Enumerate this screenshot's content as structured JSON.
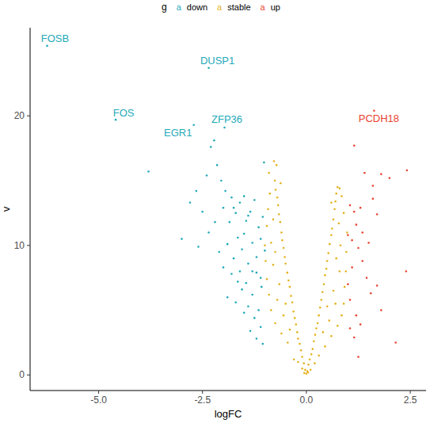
{
  "chart_data": {
    "type": "scatter",
    "x_label": "logFC",
    "y_label": "v",
    "legend_title": "g",
    "legend_key": "a",
    "legend": "top",
    "grid": false,
    "marker": "circle",
    "xlim": [
      -6.65,
      2.88
    ],
    "ylim": [
      -1.2,
      26.8
    ],
    "xticks": [
      {
        "value": -5,
        "label": "-5.0"
      },
      {
        "value": -2.5,
        "label": "-2.5"
      },
      {
        "value": 0,
        "label": "0.0"
      },
      {
        "value": 2.5,
        "label": "2.5"
      }
    ],
    "yticks": [
      0,
      10,
      20
    ],
    "series": [
      {
        "name": "down",
        "color": "#1fa9b9",
        "x": [
          -6.24,
          -4.59,
          -2.35,
          -2.71,
          -1.97,
          -3.8,
          -3.0,
          -2.8,
          -2.65,
          -2.4,
          -2.3,
          -2.22,
          -2.15,
          -2.05,
          -2.5,
          -2.35,
          -2.0,
          -1.95,
          -1.85,
          -1.8,
          -1.7,
          -1.65,
          -1.6,
          -1.55,
          -1.5,
          -1.45,
          -1.4,
          -1.35,
          -1.3,
          -1.25,
          -1.2,
          -1.15,
          -1.1,
          -1.05,
          -1.02,
          -1.0,
          -2.1,
          -2.0,
          -1.9,
          -1.9,
          -1.8,
          -1.75,
          -1.7,
          -1.6,
          -1.55,
          -1.5,
          -1.45,
          -1.4,
          -1.35,
          -1.3,
          -1.25,
          -1.2,
          -1.15,
          -1.1,
          -1.08,
          -1.05,
          -1.3,
          -1.5,
          -1.65,
          -1.2,
          -1.4,
          -2.2,
          -2.6,
          -1.1,
          -1.75
        ],
        "values": [
          25.4,
          19.7,
          23.7,
          19.3,
          19.1,
          15.7,
          10.5,
          13.3,
          14.2,
          15.4,
          17.6,
          18.1,
          16.2,
          15.0,
          12.6,
          11.0,
          12.9,
          14.2,
          11.8,
          13.7,
          12.5,
          10.6,
          13.3,
          9.7,
          13.8,
          11.9,
          8.6,
          12.6,
          10.2,
          13.5,
          9.1,
          11.4,
          7.5,
          12.2,
          16.4,
          9.6,
          9.5,
          8.3,
          10.1,
          6.0,
          7.8,
          9.0,
          5.6,
          8.0,
          6.6,
          4.8,
          7.1,
          5.3,
          3.4,
          6.2,
          4.4,
          2.8,
          5.0,
          3.7,
          6.8,
          2.4,
          8.0,
          10.9,
          7.2,
          7.9,
          12.3,
          11.8,
          9.9,
          10.5,
          12.9
        ]
      },
      {
        "name": "stable",
        "color": "#e3b21f",
        "x": [
          0,
          0.02,
          -0.03,
          0.05,
          -0.06,
          0.08,
          -0.1,
          0.12,
          -0.13,
          0.15,
          -0.16,
          0.18,
          -0.2,
          0.21,
          -0.22,
          0.24,
          -0.25,
          0.27,
          -0.28,
          0.3,
          -0.31,
          0.33,
          -0.34,
          0.36,
          -0.37,
          0.39,
          -0.4,
          0.42,
          -0.43,
          0.45,
          -0.46,
          0.48,
          -0.5,
          0.5,
          -0.52,
          0.53,
          -0.55,
          0.56,
          -0.58,
          0.6,
          -0.6,
          0.62,
          -0.63,
          0.65,
          -0.66,
          0.68,
          -0.68,
          0.7,
          -0.7,
          0.72,
          -0.74,
          0.75,
          -0.76,
          -0.78,
          -0.72,
          -0.9,
          -0.3,
          0.3,
          -0.45,
          0.45,
          -0.6,
          0.6,
          -0.75,
          0.75,
          -0.85,
          0.85,
          -0.9,
          0.9,
          -0.95,
          0.92,
          -0.98,
          0.95,
          -1.0,
          0.96,
          -0.95,
          0.98,
          -0.92,
          0.9,
          -0.88,
          0.85,
          0.8,
          -0.5,
          0.5,
          -0.65,
          0.65,
          -0.8,
          0.8,
          -0.85,
          0.82,
          -0.8,
          0.78,
          -0.4,
          0.4,
          -0.55,
          0.55,
          -0.7,
          0.7,
          -0.75,
          0.72,
          -0.2,
          0.2,
          -0.1,
          0.1,
          0.04,
          -0.05,
          -0.62,
          0.6
        ],
        "values": [
          0.1,
          0.3,
          0.4,
          0.8,
          0.9,
          1.2,
          1.4,
          1.6,
          1.9,
          2.0,
          2.4,
          2.6,
          2.8,
          3.1,
          3.3,
          3.6,
          3.9,
          4.0,
          4.4,
          4.6,
          4.9,
          5.2,
          5.6,
          5.8,
          6.1,
          6.4,
          6.8,
          7.0,
          7.3,
          7.7,
          7.9,
          8.2,
          8.6,
          8.8,
          9.1,
          9.4,
          9.8,
          10.1,
          10.4,
          10.8,
          11.0,
          11.3,
          11.8,
          12.0,
          12.4,
          12.8,
          13.1,
          13.4,
          13.7,
          14.0,
          14.3,
          14.5,
          15.0,
          16.5,
          16.2,
          15.6,
          1.2,
          1.5,
          2.5,
          2.2,
          3.2,
          3.0,
          4.0,
          3.8,
          5.0,
          4.6,
          6.2,
          5.5,
          7.4,
          6.8,
          8.8,
          8.0,
          10.0,
          9.5,
          11.5,
          11.0,
          12.8,
          12.5,
          14.0,
          13.8,
          14.4,
          5.5,
          5.3,
          7.0,
          6.5,
          8.5,
          8.0,
          10.2,
          10.0,
          12.0,
          11.7,
          3.5,
          3.3,
          4.6,
          4.2,
          5.8,
          5.5,
          9.5,
          9.0,
          1.0,
          0.9,
          0.5,
          0.4,
          0.2,
          0.15,
          14.8,
          13.3
        ]
      },
      {
        "name": "up",
        "color": "#e8432f",
        "x": [
          1.63,
          1.15,
          1.4,
          1.8,
          2.42,
          2.0,
          2.4,
          2.15,
          1.15,
          1.2,
          1.3,
          1.05,
          1.1,
          1.25,
          1.35,
          1.5,
          1.6,
          1.7,
          1.45,
          1.55,
          1.7,
          1.05,
          1.1,
          1.2,
          1.3,
          1.15,
          1.0,
          1.0,
          1.35,
          1.8,
          1.25,
          1.05,
          1.6
        ],
        "values": [
          20.4,
          17.7,
          15.6,
          15.5,
          15.8,
          15.2,
          8.0,
          2.5,
          12.6,
          11.6,
          12.9,
          13.1,
          10.4,
          9.8,
          11.0,
          10.2,
          13.6,
          12.4,
          7.5,
          6.3,
          6.9,
          5.8,
          8.3,
          4.6,
          3.9,
          2.9,
          7.0,
          10.8,
          8.8,
          5.0,
          1.4,
          3.6,
          14.6
        ]
      }
    ],
    "annotations": [
      {
        "text": "FOSB",
        "x": -6.24,
        "y": 25.4,
        "color": "#1fa9b9"
      },
      {
        "text": "FOS",
        "x": -4.59,
        "y": 19.7,
        "color": "#1fa9b9"
      },
      {
        "text": "DUSP1",
        "x": -2.35,
        "y": 23.7,
        "color": "#1fa9b9"
      },
      {
        "text": "EGR1",
        "x": -2.71,
        "y": 19.3,
        "color": "#1fa9b9"
      },
      {
        "text": "ZFP36",
        "x": -1.97,
        "y": 19.1,
        "color": "#1fa9b9"
      },
      {
        "text": "PCDH18",
        "x": 1.63,
        "y": 20.4,
        "color": "#e8432f"
      }
    ]
  }
}
